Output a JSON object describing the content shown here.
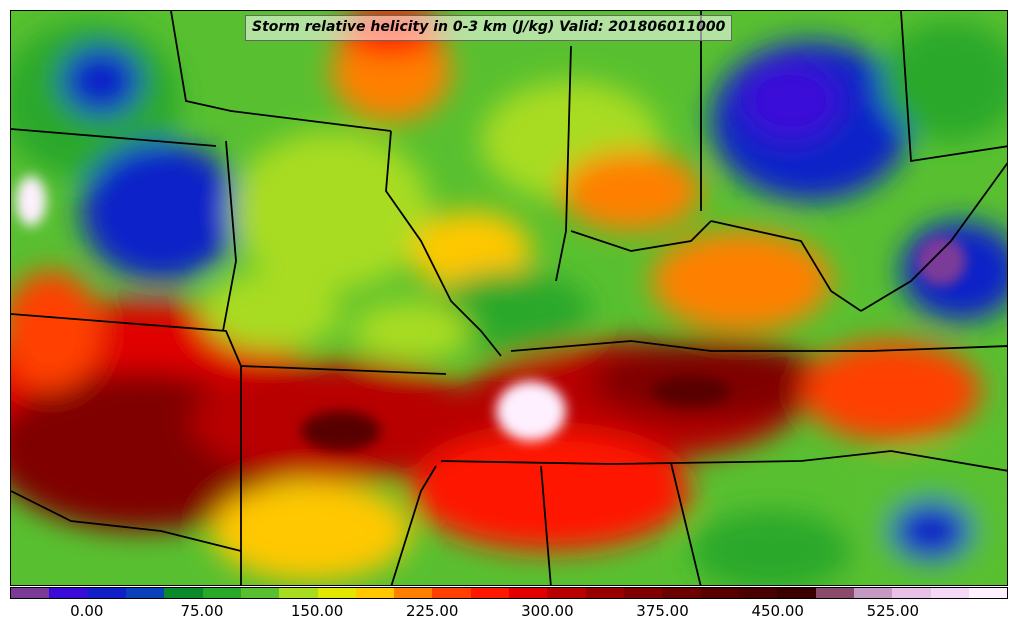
{
  "title": "Storm relative helicity in 0-3 km (J/kg) Valid: 201806011000",
  "colorbar": {
    "colors": [
      "#7b3a98",
      "#3a0ad8",
      "#1020c8",
      "#0a40b8",
      "#0a8a2a",
      "#2aa82a",
      "#58c030",
      "#a8dc20",
      "#e0e800",
      "#ffc800",
      "#ff8000",
      "#ff4000",
      "#ff1800",
      "#e00000",
      "#b80000",
      "#980000",
      "#800000",
      "#6a0000",
      "#580000",
      "#480000",
      "#3a0000",
      "#8a4a6a",
      "#c49ac4",
      "#e8c0e8",
      "#f5d8f5",
      "#fff0ff"
    ],
    "tick_labels": [
      "0.00",
      "75.00",
      "150.00",
      "225.00",
      "300.00",
      "375.00",
      "450.00",
      "525.00"
    ],
    "tick_values": [
      0,
      75,
      150,
      225,
      300,
      375,
      450,
      525
    ]
  },
  "icons": {
    "colorbar": "helicity-colorbar",
    "map": "contour-map"
  }
}
